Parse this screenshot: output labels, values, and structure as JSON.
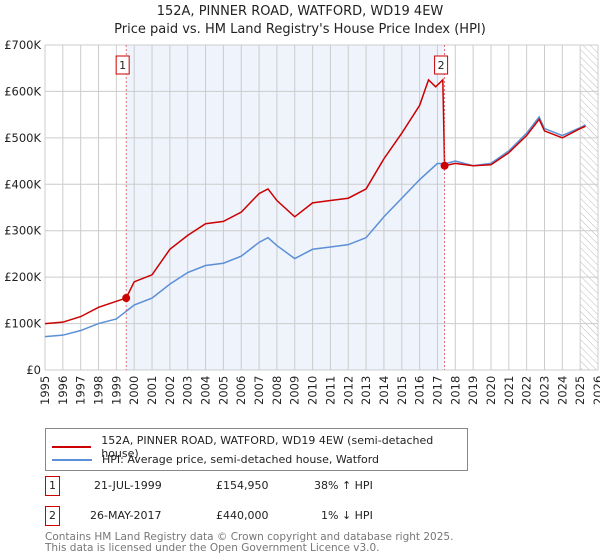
{
  "chart_data": {
    "type": "line",
    "title": "152A, PINNER ROAD, WATFORD, WD19 4EW",
    "subtitle": "Price paid vs. HM Land Registry's House Price Index (HPI)",
    "xlim": [
      1995,
      2026
    ],
    "ylim": [
      0,
      700000
    ],
    "y_ticks": [
      {
        "v": 0,
        "l": "£0"
      },
      {
        "v": 100000,
        "l": "£100K"
      },
      {
        "v": 200000,
        "l": "£200K"
      },
      {
        "v": 300000,
        "l": "£300K"
      },
      {
        "v": 400000,
        "l": "£400K"
      },
      {
        "v": 500000,
        "l": "£500K"
      },
      {
        "v": 600000,
        "l": "£600K"
      },
      {
        "v": 700000,
        "l": "£700K"
      }
    ],
    "x_ticks": [
      "1995",
      "1996",
      "1997",
      "1998",
      "1999",
      "2000",
      "2001",
      "2002",
      "2003",
      "2004",
      "2005",
      "2006",
      "2007",
      "2008",
      "2009",
      "2010",
      "2011",
      "2012",
      "2013",
      "2014",
      "2015",
      "2016",
      "2017",
      "2018",
      "2019",
      "2020",
      "2021",
      "2022",
      "2023",
      "2024",
      "2025",
      "2026"
    ],
    "grid": true,
    "shaded_range": [
      1999.55,
      2017.4
    ],
    "hatched_from": 2025.0,
    "series": [
      {
        "name": "152A, PINNER ROAD, WATFORD, WD19 4EW (semi-detached house)",
        "color": "#cc0000",
        "x": [
          1995,
          1996,
          1997,
          1998,
          1999,
          1999.55,
          2000,
          2001,
          2002,
          2003,
          2004,
          2005,
          2006,
          2007,
          2007.5,
          2008,
          2009,
          2010,
          2011,
          2012,
          2013,
          2014,
          2015,
          2016,
          2016.5,
          2016.9,
          2017.3,
          2017.4,
          2018,
          2019,
          2020,
          2021,
          2022,
          2022.7,
          2023,
          2024,
          2025,
          2025.3
        ],
        "y": [
          100000,
          103000,
          115000,
          135000,
          148000,
          154950,
          190000,
          205000,
          260000,
          290000,
          315000,
          320000,
          340000,
          380000,
          390000,
          365000,
          330000,
          360000,
          365000,
          370000,
          390000,
          455000,
          510000,
          570000,
          625000,
          610000,
          625000,
          440000,
          445000,
          440000,
          442000,
          468000,
          505000,
          540000,
          515000,
          500000,
          520000,
          525000
        ]
      },
      {
        "name": "HPI: Average price, semi-detached house, Watford",
        "color": "#5b8fd6",
        "x": [
          1995,
          1996,
          1997,
          1998,
          1999,
          2000,
          2001,
          2002,
          2003,
          2004,
          2005,
          2006,
          2007,
          2007.5,
          2008,
          2009,
          2010,
          2011,
          2012,
          2013,
          2014,
          2015,
          2016,
          2017,
          2017.4,
          2018,
          2019,
          2020,
          2021,
          2022,
          2022.7,
          2023,
          2024,
          2025,
          2025.3
        ],
        "y": [
          72000,
          75000,
          85000,
          100000,
          110000,
          140000,
          155000,
          185000,
          210000,
          225000,
          230000,
          245000,
          275000,
          285000,
          268000,
          240000,
          260000,
          265000,
          270000,
          285000,
          330000,
          370000,
          410000,
          445000,
          444000,
          450000,
          440000,
          445000,
          472000,
          510000,
          545000,
          520000,
          505000,
          522000,
          528000
        ]
      }
    ],
    "sales": [
      {
        "label": "1",
        "x": 1999.55,
        "y": 154950
      },
      {
        "label": "2",
        "x": 2017.4,
        "y": 440000
      }
    ]
  },
  "legend": {
    "red": "152A, PINNER ROAD, WATFORD, WD19 4EW (semi-detached house)",
    "blue": "HPI: Average price, semi-detached house, Watford"
  },
  "sales_table": [
    {
      "num": "1",
      "date": "21-JUL-1999",
      "price": "£154,950",
      "hpi": "38% ↑ HPI"
    },
    {
      "num": "2",
      "date": "26-MAY-2017",
      "price": "£440,000",
      "hpi": "1% ↓ HPI"
    }
  ],
  "footer": {
    "line1": "Contains HM Land Registry data © Crown copyright and database right 2025.",
    "line2": "This data is licensed under the Open Government Licence v3.0."
  }
}
